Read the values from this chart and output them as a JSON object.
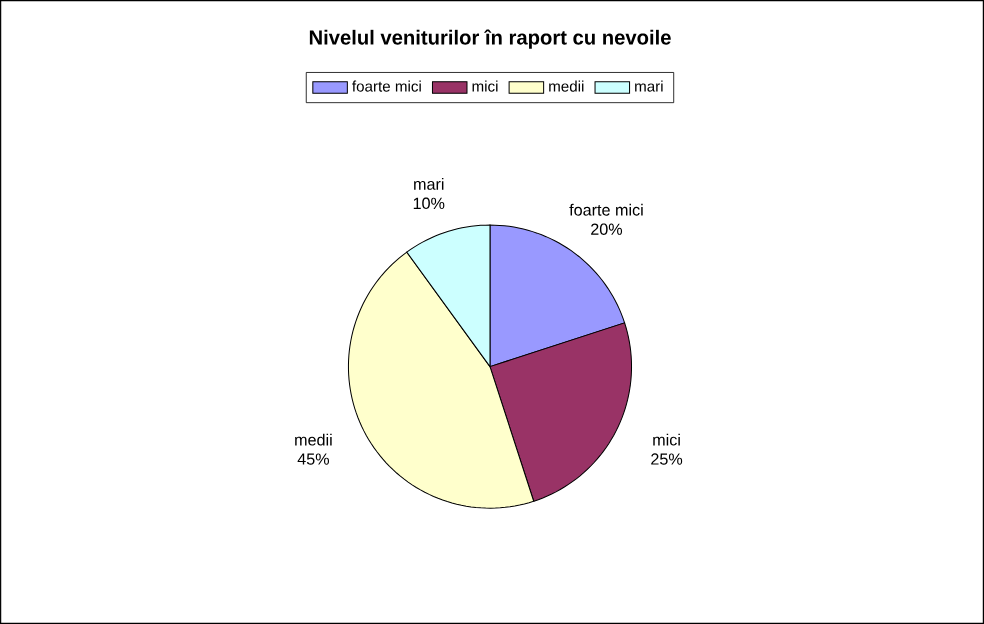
{
  "chart_data": {
    "type": "pie",
    "title": "Nivelul veniturilor în raport cu nevoile",
    "categories": [
      "foarte mici",
      "mici",
      "medii",
      "mari"
    ],
    "values": [
      20,
      25,
      45,
      10
    ],
    "colors": [
      "#9999ff",
      "#993366",
      "#ffffcc",
      "#ccffff"
    ],
    "value_labels": [
      "20%",
      "25%",
      "45%",
      "10%"
    ],
    "legend": "top"
  }
}
